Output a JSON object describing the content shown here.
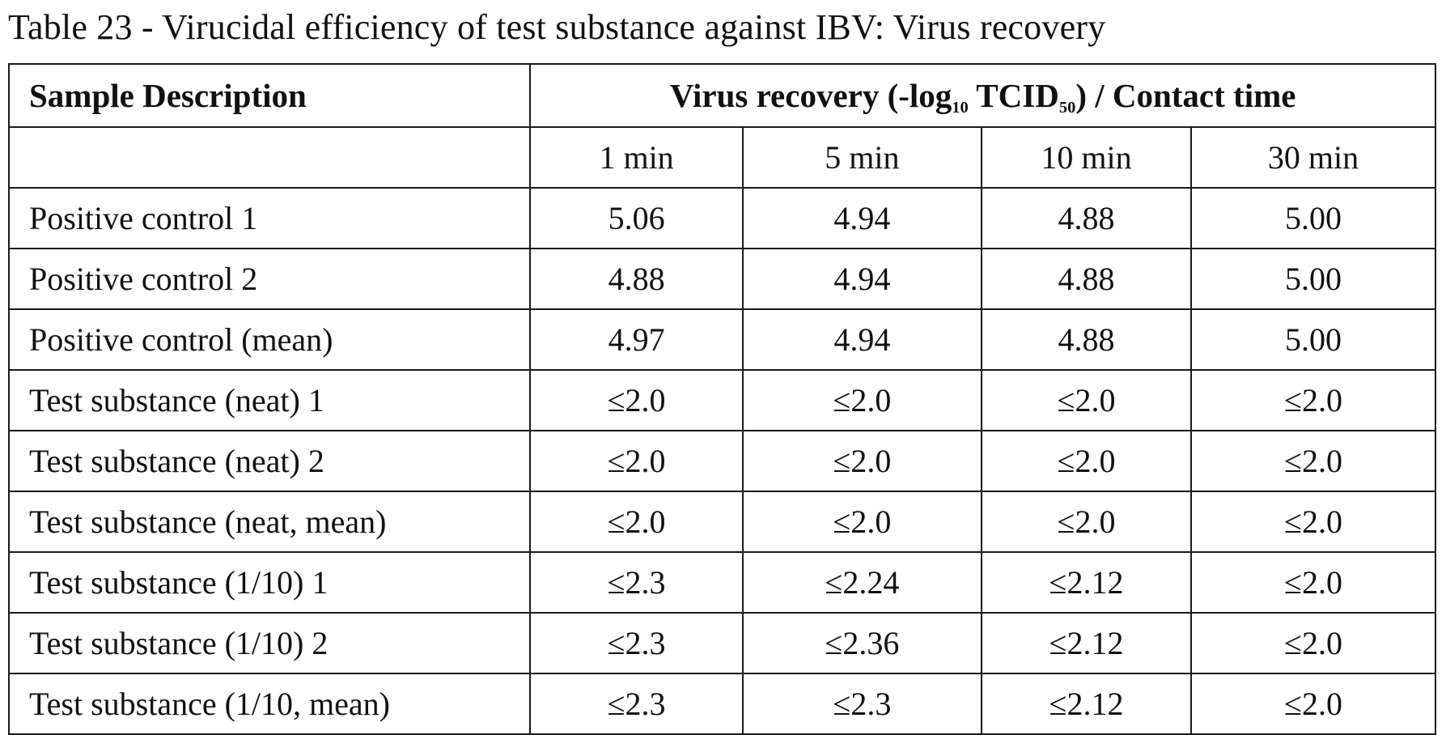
{
  "caption": "Table 23 - Virucidal efficiency of test substance against IBV: Virus recovery",
  "header": {
    "sample_description": "Sample Description",
    "virus_recovery_prefix": "Virus recovery (-log",
    "virus_recovery_sub1": "10",
    "virus_recovery_mid": " TCID",
    "virus_recovery_sub2": "50",
    "virus_recovery_suffix": ") / Contact time"
  },
  "contact_times": [
    "1 min",
    "5 min",
    "10 min",
    "30 min"
  ],
  "rows": [
    {
      "label": "Positive control 1",
      "values": [
        "5.06",
        "4.94",
        "4.88",
        "5.00"
      ]
    },
    {
      "label": "Positive control 2",
      "values": [
        "4.88",
        "4.94",
        "4.88",
        "5.00"
      ]
    },
    {
      "label": "Positive control (mean)",
      "values": [
        "4.97",
        "4.94",
        "4.88",
        "5.00"
      ]
    },
    {
      "label": "Test substance (neat) 1",
      "values": [
        "≤2.0",
        "≤2.0",
        "≤2.0",
        "≤2.0"
      ]
    },
    {
      "label": "Test substance (neat) 2",
      "values": [
        "≤2.0",
        "≤2.0",
        "≤2.0",
        "≤2.0"
      ]
    },
    {
      "label": "Test substance (neat, mean)",
      "values": [
        "≤2.0",
        "≤2.0",
        "≤2.0",
        "≤2.0"
      ]
    },
    {
      "label": "Test substance (1/10) 1",
      "values": [
        "≤2.3",
        "≤2.24",
        "≤2.12",
        "≤2.0"
      ]
    },
    {
      "label": "Test substance (1/10) 2",
      "values": [
        "≤2.3",
        "≤2.36",
        "≤2.12",
        "≤2.0"
      ]
    },
    {
      "label": "Test substance (1/10, mean)",
      "values": [
        "≤2.3",
        "≤2.3",
        "≤2.12",
        "≤2.0"
      ]
    }
  ]
}
